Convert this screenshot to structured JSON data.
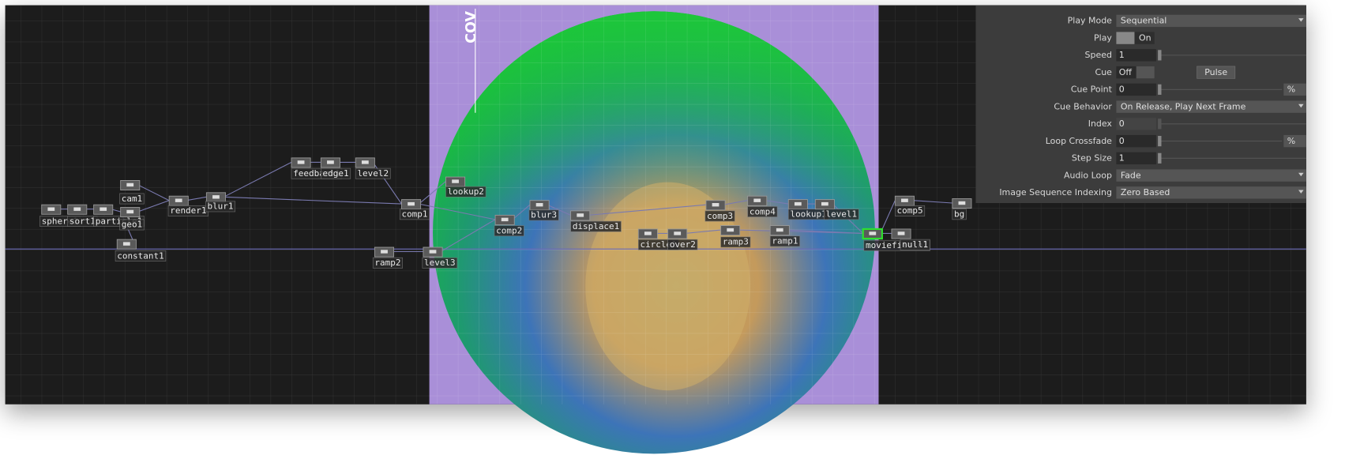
{
  "image_title": "COV",
  "nodes": [
    {
      "label": "sphere1"
    },
    {
      "label": "sort1"
    },
    {
      "label": "particle1"
    },
    {
      "label": "cam1"
    },
    {
      "label": "geo1"
    },
    {
      "label": "constant1"
    },
    {
      "label": "render1"
    },
    {
      "label": "blur1"
    },
    {
      "label": "feedback1"
    },
    {
      "label": "edge1"
    },
    {
      "label": "level2"
    },
    {
      "label": "comp1"
    },
    {
      "label": "lookup2"
    },
    {
      "label": "ramp2"
    },
    {
      "label": "level3"
    },
    {
      "label": "comp2"
    },
    {
      "label": "blur3"
    },
    {
      "label": "displace1"
    },
    {
      "label": "circle1"
    },
    {
      "label": "over2"
    },
    {
      "label": "comp3"
    },
    {
      "label": "comp4"
    },
    {
      "label": "lookup1"
    },
    {
      "label": "level1"
    },
    {
      "label": "ramp3"
    },
    {
      "label": "ramp1"
    },
    {
      "label": "moviefilein1"
    },
    {
      "label": "null1"
    },
    {
      "label": "comp5"
    },
    {
      "label": "bg"
    }
  ],
  "parameters": [
    {
      "label": "Play Mode",
      "value": "Sequential",
      "kind": "menu"
    },
    {
      "label": "Play",
      "value": "On",
      "kind": "toggle"
    },
    {
      "label": "Speed",
      "value": "1",
      "kind": "slider"
    },
    {
      "label": "Cue",
      "value": "Off",
      "button": "Pulse",
      "kind": "toggle"
    },
    {
      "label": "Cue Point",
      "value": "0",
      "unit": "%",
      "kind": "slider"
    },
    {
      "label": "Cue Behavior",
      "value": "On Release, Play Next Frame",
      "kind": "menu"
    },
    {
      "label": "Index",
      "value": "0",
      "kind": "slider",
      "disabled": true
    },
    {
      "label": "Loop Crossfade",
      "value": "0",
      "unit": "%",
      "kind": "slider"
    },
    {
      "label": "Step Size",
      "value": "1",
      "kind": "slider"
    },
    {
      "label": "Audio Loop",
      "value": "Fade",
      "kind": "menu"
    },
    {
      "label": "Image Sequence Indexing",
      "value": "Zero Based",
      "kind": "menu"
    }
  ]
}
